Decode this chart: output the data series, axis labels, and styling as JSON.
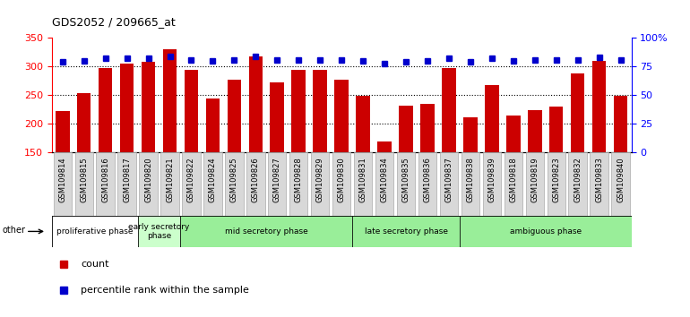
{
  "title": "GDS2052 / 209665_at",
  "samples": [
    "GSM109814",
    "GSM109815",
    "GSM109816",
    "GSM109817",
    "GSM109820",
    "GSM109821",
    "GSM109822",
    "GSM109824",
    "GSM109825",
    "GSM109826",
    "GSM109827",
    "GSM109828",
    "GSM109829",
    "GSM109830",
    "GSM109831",
    "GSM109834",
    "GSM109835",
    "GSM109836",
    "GSM109837",
    "GSM109838",
    "GSM109839",
    "GSM109818",
    "GSM109819",
    "GSM109823",
    "GSM109832",
    "GSM109833",
    "GSM109840"
  ],
  "counts": [
    222,
    254,
    298,
    305,
    308,
    330,
    294,
    244,
    277,
    318,
    272,
    294,
    295,
    277,
    249,
    169,
    232,
    234,
    297,
    211,
    268,
    215,
    223,
    230,
    288,
    310,
    248
  ],
  "percentile_ranks": [
    79,
    80,
    82,
    82,
    82,
    84,
    81,
    80,
    81,
    84,
    81,
    81,
    81,
    81,
    80,
    78,
    79,
    80,
    82,
    79,
    82,
    80,
    81,
    81,
    81,
    83,
    81
  ],
  "bar_color": "#cc0000",
  "dot_color": "#0000cc",
  "ylim_left": [
    150,
    350
  ],
  "ylim_right": [
    0,
    100
  ],
  "yticks_left": [
    150,
    200,
    250,
    300,
    350
  ],
  "yticks_right": [
    0,
    25,
    50,
    75,
    100
  ],
  "ytick_labels_right": [
    "0",
    "25",
    "50",
    "75",
    "100%"
  ],
  "phases": [
    {
      "label": "proliferative phase",
      "start": 0,
      "end": 4,
      "color": "#ffffff"
    },
    {
      "label": "early secretory\nphase",
      "start": 4,
      "end": 6,
      "color": "#ccffcc"
    },
    {
      "label": "mid secretory phase",
      "start": 6,
      "end": 14,
      "color": "#99ee99"
    },
    {
      "label": "late secretory phase",
      "start": 14,
      "end": 19,
      "color": "#99ee99"
    },
    {
      "label": "ambiguous phase",
      "start": 19,
      "end": 27,
      "color": "#99ee99"
    }
  ],
  "legend_count_label": "count",
  "legend_pct_label": "percentile rank within the sample",
  "other_label": "other"
}
